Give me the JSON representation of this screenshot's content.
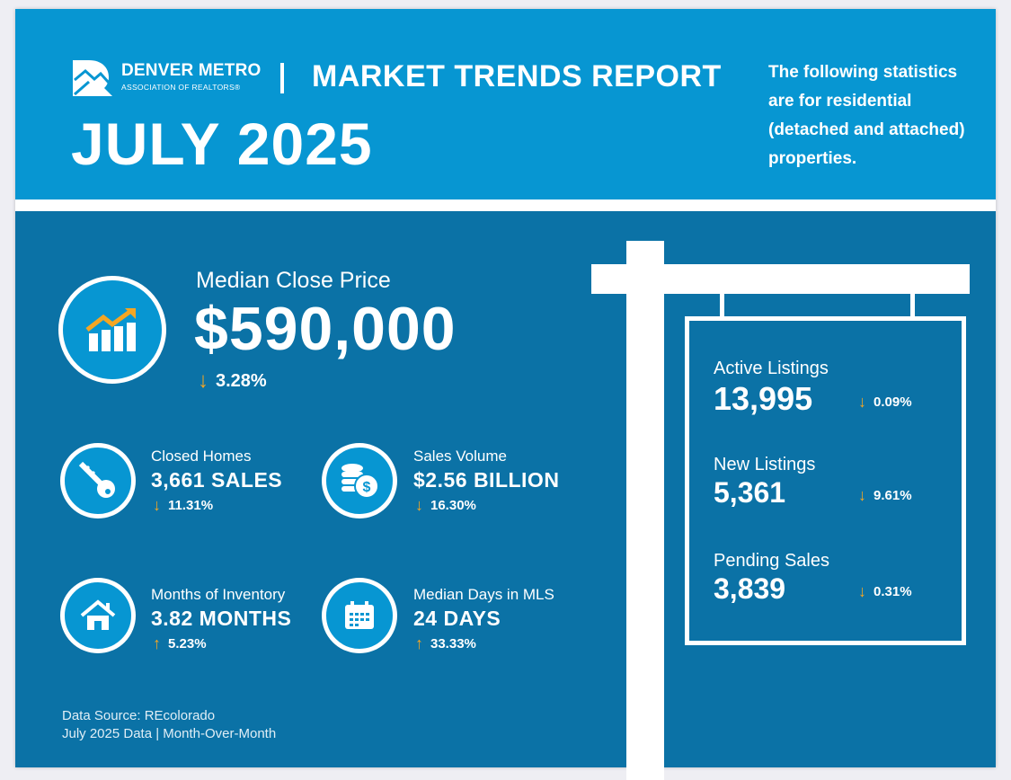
{
  "header": {
    "org_name": "DENVER METRO",
    "org_sub": "ASSOCIATION OF REALTORS®",
    "report_title": "MARKET TRENDS REPORT",
    "month": "JULY 2025",
    "description": "The following statistics are for residential (detached and attached) properties."
  },
  "median_close_price": {
    "label": "Median Close Price",
    "value": "$590,000",
    "change": "3.28%",
    "direction": "down"
  },
  "stats": [
    {
      "label": "Closed Homes",
      "value": "3,661 SALES",
      "change": "11.31%",
      "direction": "down",
      "icon": "key-icon"
    },
    {
      "label": "Sales Volume",
      "value": "$2.56 BILLION",
      "change": "16.30%",
      "direction": "down",
      "icon": "coins-icon"
    },
    {
      "label": "Months of Inventory",
      "value": "3.82 MONTHS",
      "change": "5.23%",
      "direction": "up",
      "icon": "house-icon"
    },
    {
      "label": "Median Days in MLS",
      "value": "24 DAYS",
      "change": "33.33%",
      "direction": "up",
      "icon": "calendar-icon"
    }
  ],
  "sign": [
    {
      "label": "Active Listings",
      "value": "13,995",
      "change": "0.09%",
      "direction": "down"
    },
    {
      "label": "New Listings",
      "value": "5,361",
      "change": "9.61%",
      "direction": "down"
    },
    {
      "label": "Pending Sales",
      "value": "3,839",
      "change": "0.31%",
      "direction": "down"
    }
  ],
  "footer": {
    "source": "Data Source: REcolorado",
    "period": "July 2025 Data | Month-Over-Month"
  },
  "arrows": {
    "down": "↓",
    "up": "↑"
  },
  "colors": {
    "header": "#0796d2",
    "body": "#0b72a6",
    "arrow": "#f5a623"
  }
}
